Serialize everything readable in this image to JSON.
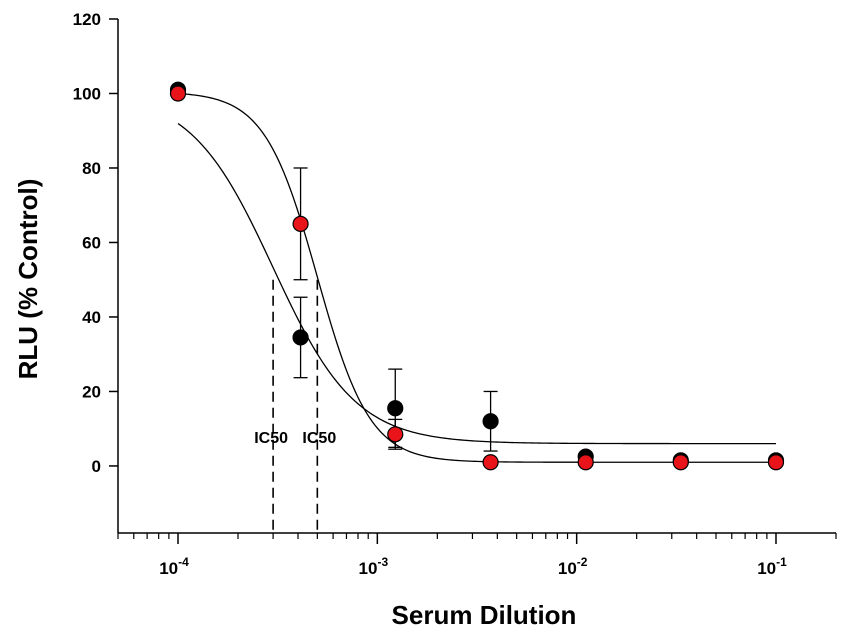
{
  "chart_data": {
    "type": "scatter",
    "title": "",
    "xlabel": "Serum Dilution",
    "ylabel": "RLU (% Control)",
    "x_scale": "log",
    "xlim": [
      5e-05,
      0.2
    ],
    "ylim": [
      -18,
      120
    ],
    "y_ticks": [
      0,
      20,
      40,
      60,
      80,
      100,
      120
    ],
    "x_ticks": [
      {
        "value": 0.0001,
        "base": "10",
        "exp": "-4"
      },
      {
        "value": 0.001,
        "base": "10",
        "exp": "-3"
      },
      {
        "value": 0.01,
        "base": "10",
        "exp": "-2"
      },
      {
        "value": 0.1,
        "base": "10",
        "exp": "-1"
      }
    ],
    "grid": false,
    "legend": "none",
    "series": [
      {
        "color": "#000000",
        "x": [
          0.0001,
          0.000412,
          0.00123,
          0.0037,
          0.0111,
          0.0333,
          0.1
        ],
        "y": [
          101,
          34.5,
          15.5,
          12,
          2.5,
          1.5,
          1.5
        ],
        "err": [
          0,
          10.8,
          10.5,
          8,
          0,
          0,
          0
        ],
        "fit": {
          "bottom": 6,
          "top": 100.5,
          "ic50": 0.0003,
          "hill": 2.1
        }
      },
      {
        "color": "#e8141a",
        "x": [
          0.0001,
          0.000412,
          0.00123,
          0.0037,
          0.0111,
          0.0333,
          0.1
        ],
        "y": [
          100,
          65,
          8.5,
          1,
          1,
          1,
          1
        ],
        "err": [
          0,
          15,
          4,
          0,
          0,
          0,
          0
        ],
        "fit": {
          "bottom": 1,
          "top": 100.5,
          "ic50": 0.0005,
          "hill": 3.3
        }
      }
    ],
    "annotations": [
      {
        "text": "IC50",
        "x": 0.0003,
        "y": 50
      },
      {
        "text": "IC50",
        "x": 0.0005,
        "y": 50
      }
    ]
  }
}
